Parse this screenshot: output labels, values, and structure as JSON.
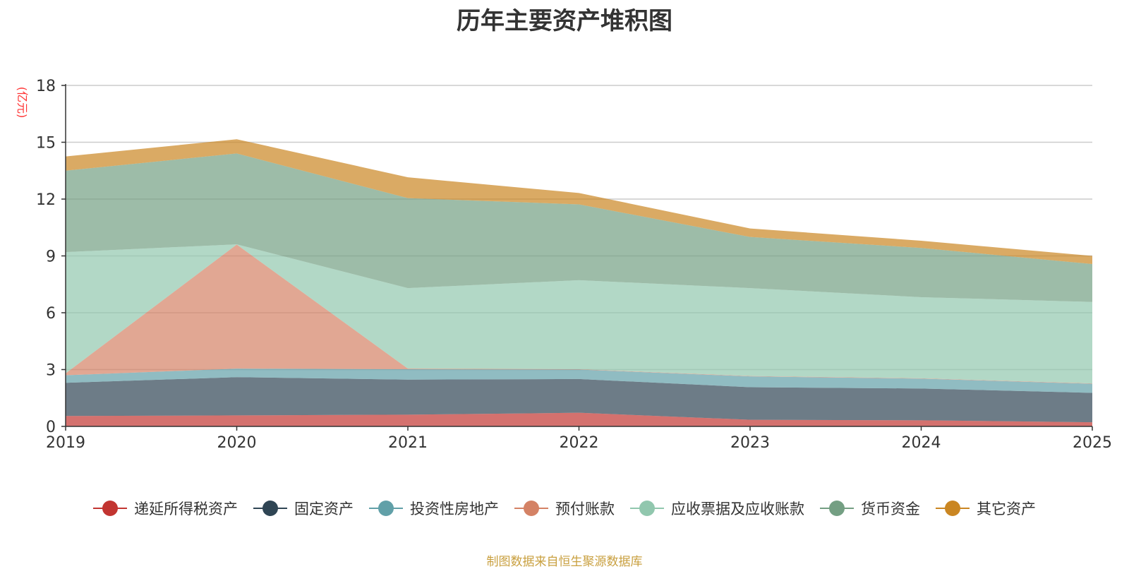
{
  "chart_data": {
    "type": "area",
    "stacked": true,
    "title": "历年主要资产堆积图",
    "ylabel": "(亿元)",
    "xlabel": "",
    "x": [
      "2019",
      "2020",
      "2021",
      "2022",
      "2023",
      "2024",
      "2025"
    ],
    "ylim": [
      0,
      18
    ],
    "yticks": [
      0,
      3,
      6,
      9,
      12,
      15,
      18
    ],
    "grid": true,
    "legend_position": "bottom",
    "series": [
      {
        "name": "递延所得税资产",
        "color": "#c23531",
        "values": [
          0.55,
          0.58,
          0.62,
          0.72,
          0.35,
          0.32,
          0.22
        ]
      },
      {
        "name": "固定资产",
        "color": "#2f4554",
        "values": [
          1.75,
          2.02,
          1.85,
          1.78,
          1.72,
          1.68,
          1.55
        ]
      },
      {
        "name": "投资性房地产",
        "color": "#61a0a8",
        "values": [
          0.4,
          0.45,
          0.55,
          0.5,
          0.57,
          0.52,
          0.48
        ]
      },
      {
        "name": "预付账款",
        "color": "#d48265",
        "values": [
          0.1,
          6.55,
          0.03,
          0.02,
          0.02,
          0.02,
          0.02
        ]
      },
      {
        "name": "应收票据及应收账款",
        "color": "#91c7ae",
        "values": [
          6.4,
          0.01,
          4.25,
          4.7,
          4.64,
          4.28,
          4.3
        ]
      },
      {
        "name": "货币资金",
        "color": "#749f83",
        "values": [
          4.3,
          4.8,
          4.75,
          4.0,
          2.7,
          2.6,
          2.0
        ]
      },
      {
        "name": "其它资产",
        "color": "#ca8622",
        "values": [
          0.75,
          0.75,
          1.1,
          0.6,
          0.45,
          0.38,
          0.43
        ]
      }
    ]
  },
  "source_note": "制图数据来自恒生聚源数据库"
}
